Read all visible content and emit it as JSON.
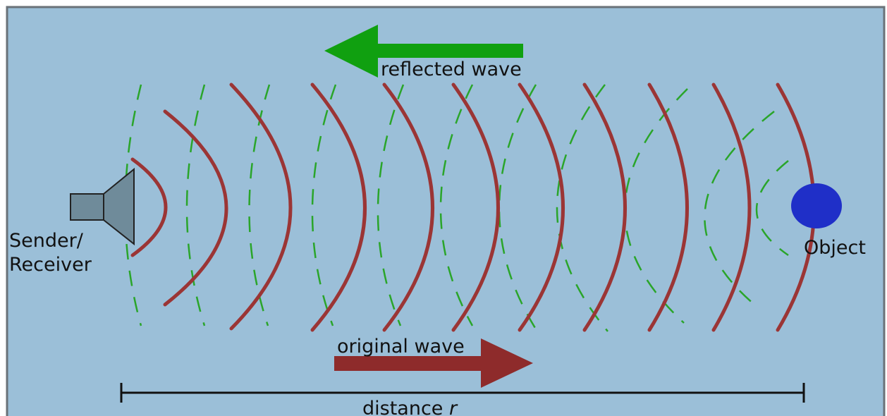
{
  "labels": {
    "reflected": "reflected wave",
    "original": "original wave",
    "sender_line1": "Sender/",
    "sender_line2": "Receiver",
    "object": "Object",
    "distance_prefix": "distance ",
    "distance_var": "r"
  },
  "colors": {
    "background": "#9bbfd8",
    "frame": "#6a7278",
    "original_wave": "#9b3535",
    "reflected_wave": "#2aa52a",
    "reflected_arrow": "#10a010",
    "original_arrow": "#8e2b2b",
    "object": "#1f2fc8",
    "speaker_fill": "#6f8b9a",
    "speaker_stroke": "#222222",
    "distance_bar": "#111111"
  },
  "icons": {
    "sender": "speaker-icon",
    "object": "circle-object-icon"
  }
}
